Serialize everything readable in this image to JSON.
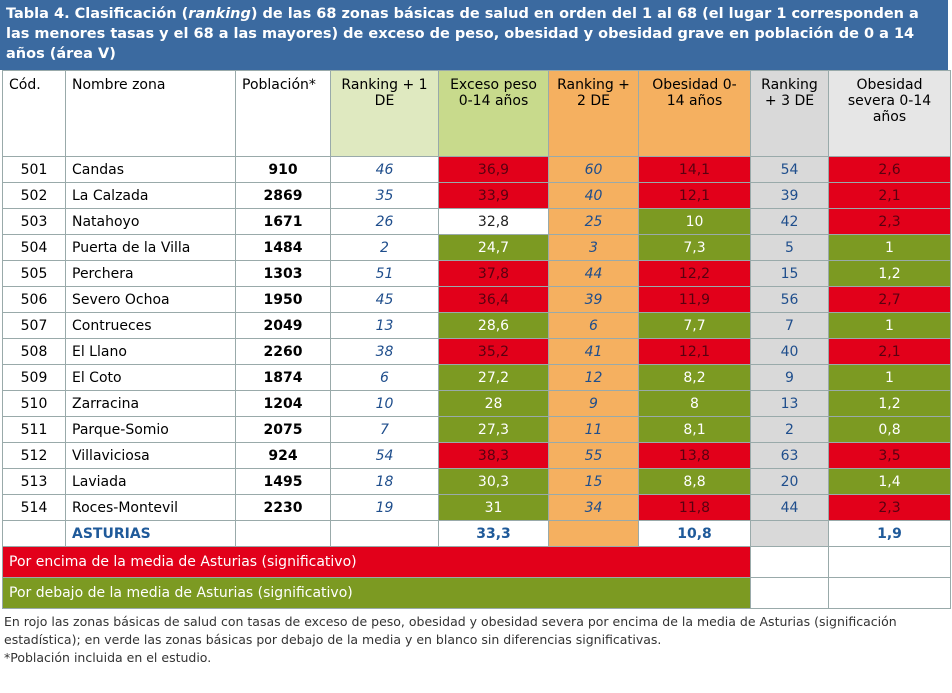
{
  "title_parts": [
    "Tabla 4. Clasificación (",
    "ranking",
    ") de las 68 zonas básicas de salud en orden del 1 al 68 (el lugar 1 corresponden a las menores tasas y el 68 a las mayores) de exceso de peso, obesidad y obesidad grave en población de 0 a 14 años (área V)"
  ],
  "headers": [
    "Cód.",
    "Nombre zona",
    "Población*",
    "Ranking + 1 DE",
    "Exceso peso 0-14 años",
    "Ranking + 2 DE",
    "Obesidad 0-14 años",
    "Ranking + 3 DE",
    "Obesidad severa 0-14 años"
  ],
  "colors": {
    "red": "#e2001a",
    "green": "#7c9a22",
    "white": "#ffffff"
  },
  "rows": [
    {
      "cells": [
        "501",
        "Candas",
        "910",
        "46",
        "36,9",
        "60",
        "14,1",
        "54",
        "2,6"
      ],
      "fills": [
        "red",
        "red",
        "red"
      ]
    },
    {
      "cells": [
        "502",
        "La Calzada",
        "2869",
        "35",
        "33,9",
        "40",
        "12,1",
        "39",
        "2,1"
      ],
      "fills": [
        "red",
        "red",
        "red"
      ]
    },
    {
      "cells": [
        "503",
        "Natahoyo",
        "1671",
        "26",
        "32,8",
        "25",
        "10",
        "42",
        "2,3"
      ],
      "fills": [
        "white",
        "green",
        "red"
      ]
    },
    {
      "cells": [
        "504",
        "Puerta de la Villa",
        "1484",
        "2",
        "24,7",
        "3",
        "7,3",
        "5",
        "1"
      ],
      "fills": [
        "green",
        "green",
        "green"
      ]
    },
    {
      "cells": [
        "505",
        "Perchera",
        "1303",
        "51",
        "37,8",
        "44",
        "12,2",
        "15",
        "1,2"
      ],
      "fills": [
        "red",
        "red",
        "green"
      ]
    },
    {
      "cells": [
        "506",
        "Severo Ochoa",
        "1950",
        "45",
        "36,4",
        "39",
        "11,9",
        "56",
        "2,7"
      ],
      "fills": [
        "red",
        "red",
        "red"
      ]
    },
    {
      "cells": [
        "507",
        "Contrueces",
        "2049",
        "13",
        "28,6",
        "6",
        "7,7",
        "7",
        "1"
      ],
      "fills": [
        "green",
        "green",
        "green"
      ]
    },
    {
      "cells": [
        "508",
        "El Llano",
        "2260",
        "38",
        "35,2",
        "41",
        "12,1",
        "40",
        "2,1"
      ],
      "fills": [
        "red",
        "red",
        "red"
      ]
    },
    {
      "cells": [
        "509",
        "El Coto",
        "1874",
        "6",
        "27,2",
        "12",
        "8,2",
        "9",
        "1"
      ],
      "fills": [
        "green",
        "green",
        "green"
      ]
    },
    {
      "cells": [
        "510",
        "Zarracina",
        "1204",
        "10",
        "28",
        "9",
        "8",
        "13",
        "1,2"
      ],
      "fills": [
        "green",
        "green",
        "green"
      ]
    },
    {
      "cells": [
        "511",
        "Parque-Somio",
        "2075",
        "7",
        "27,3",
        "11",
        "8,1",
        "2",
        "0,8"
      ],
      "fills": [
        "green",
        "green",
        "green"
      ]
    },
    {
      "cells": [
        "512",
        "Villaviciosa",
        "924",
        "54",
        "38,3",
        "55",
        "13,8",
        "63",
        "3,5"
      ],
      "fills": [
        "red",
        "red",
        "red"
      ]
    },
    {
      "cells": [
        "513",
        "Laviada",
        "1495",
        "18",
        "30,3",
        "15",
        "8,8",
        "20",
        "1,4"
      ],
      "fills": [
        "green",
        "green",
        "green"
      ]
    },
    {
      "cells": [
        "514",
        "Roces-Montevil",
        "2230",
        "19",
        "31",
        "34",
        "11,8",
        "44",
        "2,3"
      ],
      "fills": [
        "green",
        "red",
        "red"
      ]
    }
  ],
  "total": {
    "cells": [
      null,
      "ASTURIAS",
      null,
      null,
      "33,3",
      null,
      "10,8",
      null,
      "1,9"
    ]
  },
  "legend": [
    "Por encima de la media de Asturias (significativo)",
    "Por debajo de la media de Asturias (significativo)"
  ],
  "notes": [
    "En rojo las zonas básicas de salud con tasas de exceso de peso, obesidad y obesidad severa por encima de la media de Asturias (significación estadística); en verde las zonas básicas por debajo de la media y en blanco sin diferencias significativas.",
    "*Población incluida en el estudio."
  ]
}
